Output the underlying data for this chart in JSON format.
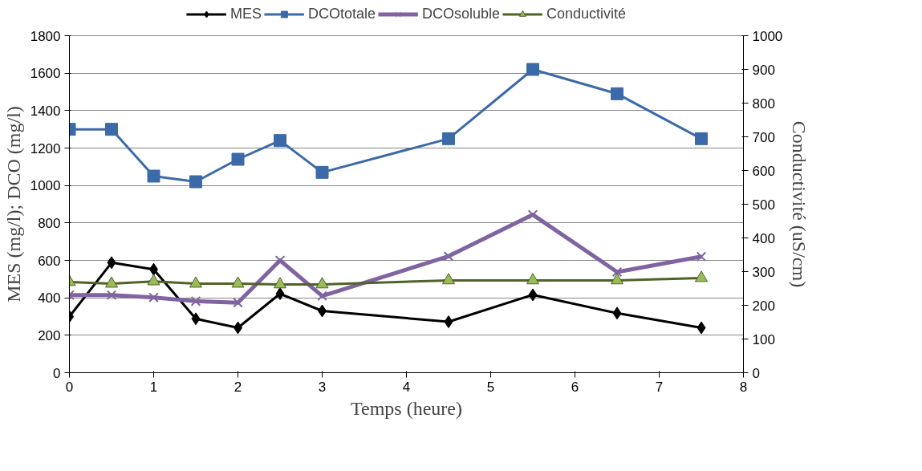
{
  "chart_data": {
    "type": "line",
    "xlabel": "Temps (heure)",
    "ylabel": "MES (mg/l); DCO (mg/l)",
    "y2label": "Conductivité (uS/cm)",
    "x": [
      0,
      0.5,
      1,
      1.5,
      2,
      2.5,
      3,
      4.5,
      5.5,
      6.5,
      7.5
    ],
    "series": [
      {
        "name": "MES",
        "color": "#000000",
        "marker": "diamond",
        "values": [
          300,
          588,
          552,
          288,
          240,
          422,
          330,
          272,
          416,
          318,
          240
        ]
      },
      {
        "name": "DCOtotale",
        "color": "#3c6aa8",
        "marker": "square",
        "values": [
          1300,
          1300,
          1050,
          1020,
          1140,
          1240,
          1070,
          1250,
          1620,
          1490,
          1250
        ]
      },
      {
        "name": "DCOsoluble",
        "color": "#8064a2",
        "marker": "cross",
        "values": [
          415,
          415,
          402,
          382,
          374,
          600,
          410,
          622,
          844,
          538,
          620
        ]
      },
      {
        "name": "Conductivité",
        "color": "#4f6228",
        "marker": "triangle",
        "axis": "y2",
        "values": [
          269,
          264,
          271,
          264,
          264,
          262,
          262,
          274,
          274,
          274,
          281
        ]
      }
    ],
    "xlim": [
      0,
      8
    ],
    "xticks": [
      0,
      1,
      2,
      3,
      4,
      5,
      6,
      7,
      8
    ],
    "ylim": [
      0,
      1800
    ],
    "yticks": [
      0,
      200,
      400,
      600,
      800,
      1000,
      1200,
      1400,
      1600,
      1800
    ],
    "y2lim": [
      0,
      1000
    ],
    "y2ticks": [
      0,
      100,
      200,
      300,
      400,
      500,
      600,
      700,
      800,
      900,
      1000
    ],
    "grid": "y",
    "legend": "top"
  }
}
